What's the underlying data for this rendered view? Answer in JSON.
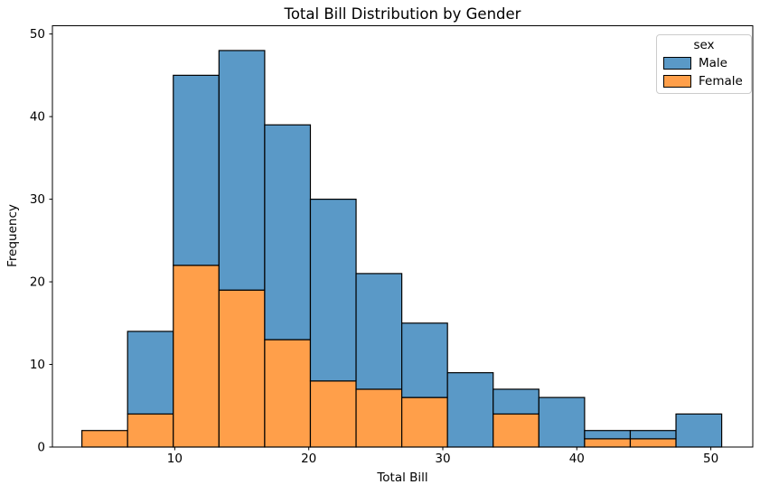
{
  "chart_data": {
    "type": "bar",
    "variant": "stacked_histogram",
    "title": "Total Bill Distribution by Gender",
    "xlabel": "Total Bill",
    "ylabel": "Frequency",
    "grid": false,
    "background": "#ffffff",
    "bar_edge_color": "#000000",
    "bin_edges": [
      3.07,
      6.48,
      9.89,
      13.3,
      16.71,
      20.12,
      23.53,
      26.94,
      30.35,
      33.76,
      37.17,
      40.58,
      43.99,
      47.4,
      50.81
    ],
    "series": [
      {
        "name": "Male",
        "color": "#5a99c7",
        "values": [
          0,
          10,
          23,
          29,
          26,
          22,
          14,
          9,
          9,
          3,
          6,
          1,
          1,
          4
        ]
      },
      {
        "name": "Female",
        "color": "#ff9f4a",
        "values": [
          2,
          4,
          22,
          19,
          13,
          8,
          7,
          6,
          0,
          4,
          0,
          1,
          1,
          0
        ]
      }
    ],
    "stack_order_bottom_to_top": [
      "Female",
      "Male"
    ],
    "legend": {
      "title": "sex",
      "position": "upper_right",
      "items": [
        "Male",
        "Female"
      ]
    },
    "xticks": [
      10,
      20,
      30,
      40,
      50
    ],
    "yticks": [
      0,
      10,
      20,
      30,
      40,
      50
    ],
    "xlim": [
      0.87,
      53.13
    ],
    "ylim": [
      0,
      51
    ]
  }
}
